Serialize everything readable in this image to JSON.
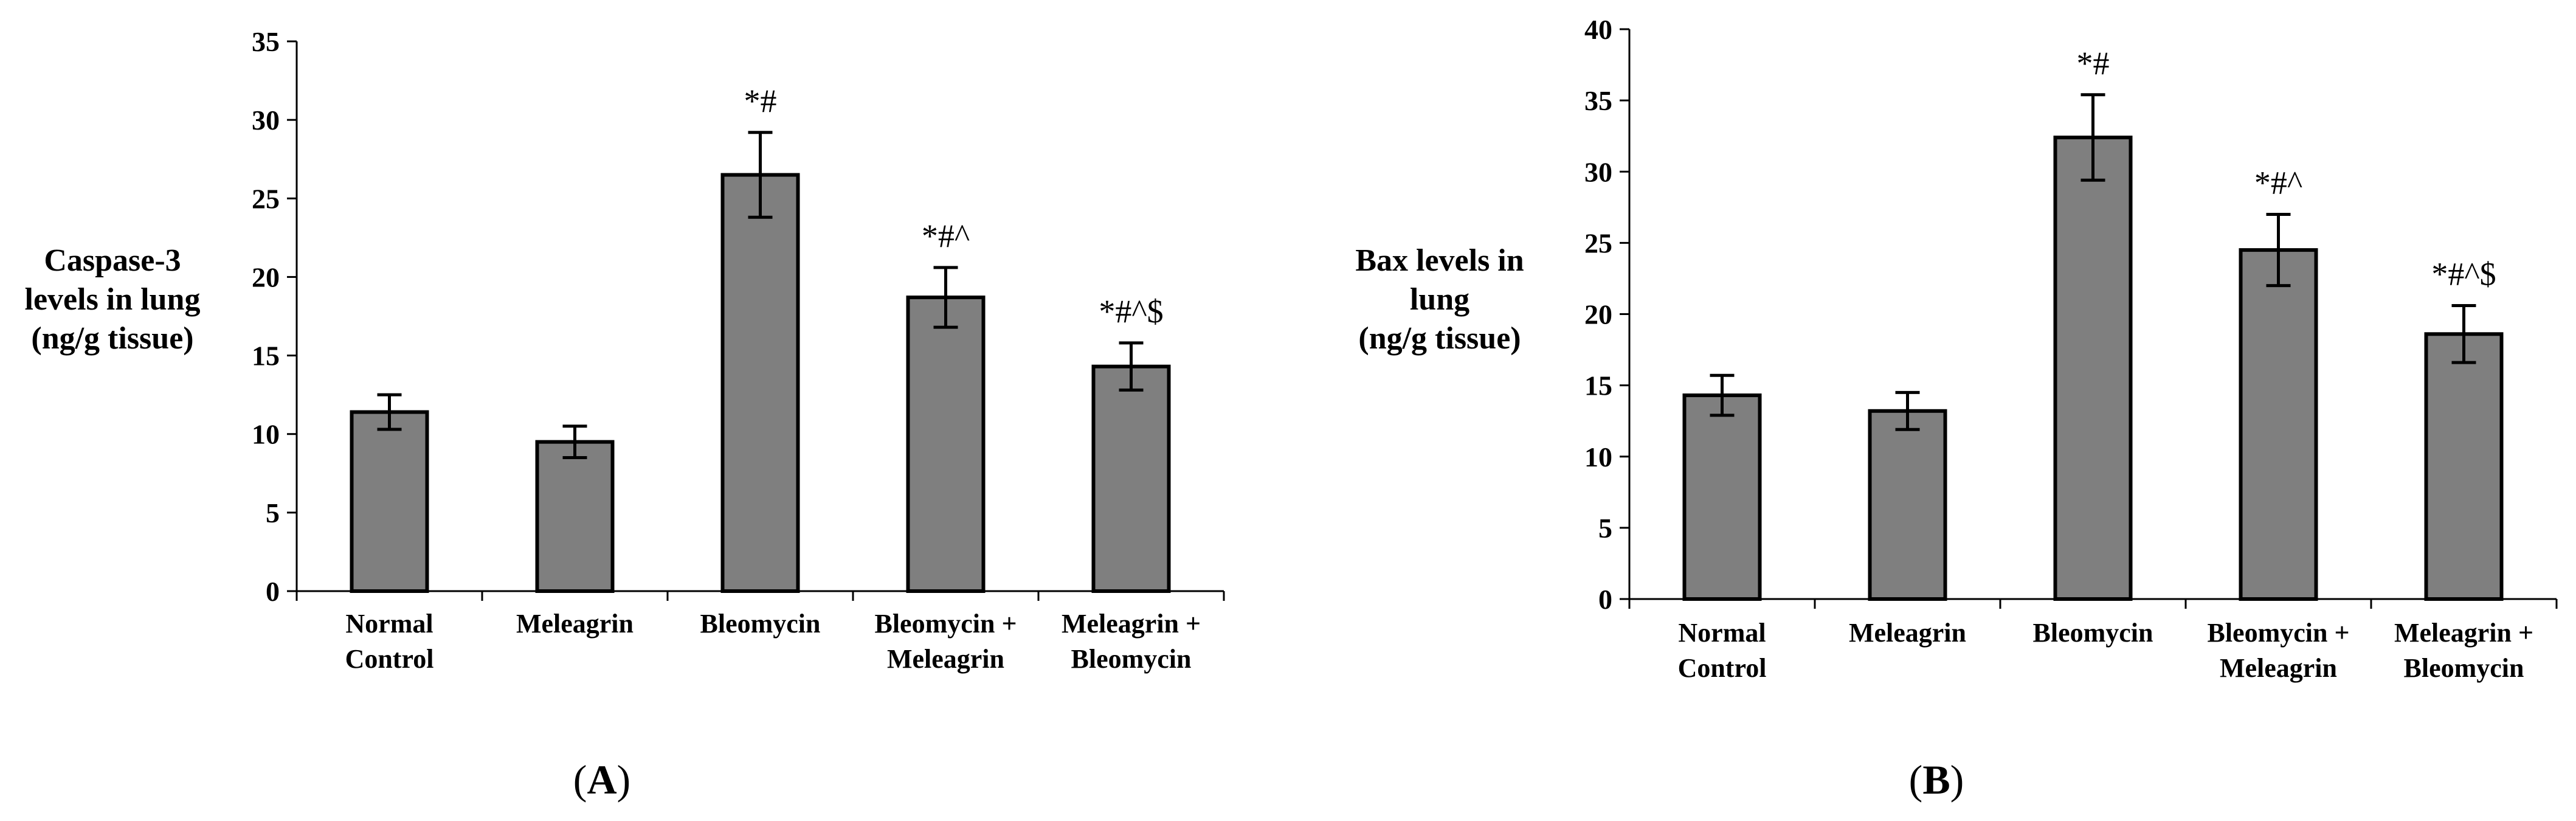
{
  "chart_data": [
    {
      "type": "bar",
      "panel": "A",
      "ylabel": [
        "Caspase-3",
        "levels in lung",
        "(ng/g tissue)"
      ],
      "ylim": [
        0,
        35
      ],
      "yticks": [
        0,
        5,
        10,
        15,
        20,
        25,
        30,
        35
      ],
      "categories": [
        [
          "Normal",
          "Control"
        ],
        [
          "Meleagrin"
        ],
        [
          "Bleomycin"
        ],
        [
          "Bleomycin +",
          "Meleagrin"
        ],
        [
          "Meleagrin +",
          "Bleomycin"
        ]
      ],
      "values": [
        11.4,
        9.5,
        26.5,
        18.7,
        14.3
      ],
      "errors": [
        1.1,
        1.0,
        2.7,
        1.9,
        1.5
      ],
      "annotations": [
        "",
        "",
        "*#",
        "*#^",
        "*#^$"
      ],
      "bar_color": "#7f7f7f"
    },
    {
      "type": "bar",
      "panel": "B",
      "ylabel": [
        "Bax levels in",
        "lung",
        "(ng/g tissue)"
      ],
      "ylim": [
        0,
        40
      ],
      "yticks": [
        0,
        5,
        10,
        15,
        20,
        25,
        30,
        35,
        40
      ],
      "categories": [
        [
          "Normal",
          "Control"
        ],
        [
          "Meleagrin"
        ],
        [
          "Bleomycin"
        ],
        [
          "Bleomycin +",
          "Meleagrin"
        ],
        [
          "Meleagrin +",
          "Bleomycin"
        ]
      ],
      "values": [
        14.3,
        13.2,
        32.4,
        24.5,
        18.6
      ],
      "errors": [
        1.4,
        1.3,
        3.0,
        2.5,
        2.0
      ],
      "annotations": [
        "",
        "",
        "*#",
        "*#^",
        "*#^$"
      ],
      "bar_color": "#7f7f7f"
    }
  ]
}
